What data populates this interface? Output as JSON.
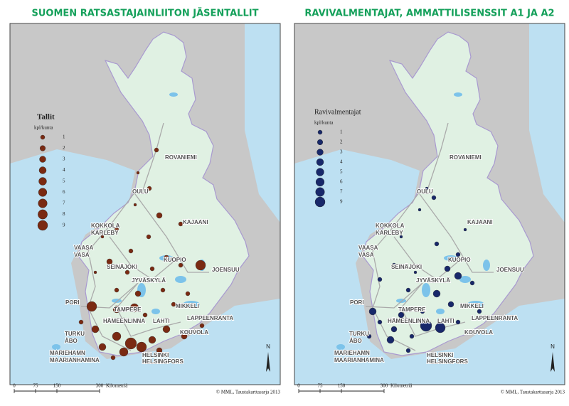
{
  "panels": [
    {
      "title": "SUOMEN RATSASTAJAINLIITON JÄSENTALLIT",
      "color": "#7a2a12",
      "legend": {
        "title": "Tallit",
        "unit": "kpl/kunta",
        "values": [
          1,
          2,
          3,
          4,
          5,
          6,
          7,
          8,
          9
        ]
      }
    },
    {
      "title": "RAVIVALMENTAJAT, AMMATTILISENSSIT A1 JA A2",
      "color": "#18286a",
      "legend": {
        "title": "Ravivalmentajat",
        "unit": "kpl/kunta",
        "values": [
          1,
          2,
          3,
          4,
          5,
          6,
          7,
          9
        ]
      }
    }
  ],
  "cities": [
    "ROVANIEMI",
    "OULU",
    "KOKKOLA",
    "KARLEBY",
    "KAJAANI",
    "VAASA",
    "VASA",
    "SEINÄJOKI",
    "KUOPIO",
    "JYVÄSKYLÄ",
    "JOENSUU",
    "PORI",
    "TAMPERE",
    "MIKKELI",
    "HÄMEENLINNA",
    "LAHTI",
    "LAPPEENRANTA",
    "TURKU",
    "ÅBO",
    "KOUVOLA",
    "MARIEHAMN",
    "MAARIANHAMINA",
    "HELSINKI",
    "HELSINGFORS"
  ],
  "scale": {
    "ticks": [
      0,
      75,
      150,
      300
    ],
    "unit": "Kilometriä"
  },
  "north": "N",
  "credit": "© MML, Taustakarttasarja 2013"
}
